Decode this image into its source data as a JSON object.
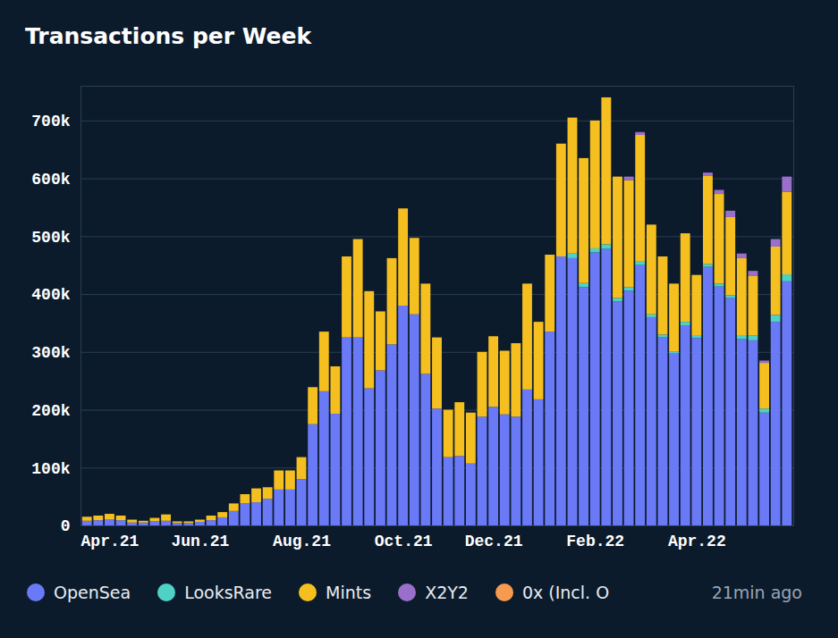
{
  "chart_data": {
    "type": "bar",
    "stacked": true,
    "grid": true,
    "title": "Transactions per Week",
    "annotation": "21min ago",
    "categories": [
      null,
      null,
      "Apr.21",
      null,
      null,
      null,
      null,
      null,
      null,
      null,
      "Jun.21",
      null,
      null,
      null,
      null,
      null,
      null,
      null,
      null,
      "Aug.21",
      null,
      null,
      null,
      null,
      null,
      null,
      null,
      null,
      "Oct.21",
      null,
      null,
      null,
      null,
      null,
      null,
      null,
      "Dec.21",
      null,
      null,
      null,
      null,
      null,
      null,
      null,
      null,
      "Feb.22",
      null,
      null,
      null,
      null,
      null,
      null,
      null,
      null,
      "Apr.22",
      null,
      null,
      null,
      null,
      null,
      null,
      null,
      null
    ],
    "ylim": [
      0,
      760000
    ],
    "yticks": [
      0,
      {
        "value": 100000,
        "label": "100k"
      },
      {
        "value": 200000,
        "label": "200k"
      },
      {
        "value": 300000,
        "label": "300k"
      },
      {
        "value": 400000,
        "label": "400k"
      },
      {
        "value": 500000,
        "label": "500k"
      },
      {
        "value": 600000,
        "label": "600k"
      },
      {
        "value": 700000,
        "label": "700k"
      }
    ],
    "series": [
      {
        "name": "OpenSea",
        "color": "#6a79f6",
        "values": [
          8000,
          9000,
          10000,
          9000,
          5000,
          5000,
          7000,
          8000,
          4000,
          4000,
          6000,
          9000,
          14000,
          25000,
          38000,
          40000,
          46000,
          62000,
          62000,
          80000,
          175000,
          232000,
          193000,
          325000,
          325000,
          237000,
          268000,
          313000,
          380000,
          365000,
          262000,
          202000,
          118000,
          120000,
          107000,
          188000,
          205000,
          192000,
          188000,
          235000,
          218000,
          335000,
          465000,
          462000,
          412000,
          472000,
          478000,
          387000,
          406000,
          450000,
          360000,
          325000,
          297000,
          346000,
          324000,
          447000,
          413000,
          393000,
          322000,
          320000,
          195000,
          352000,
          422000
        ]
      },
      {
        "name": "LooksRare",
        "color": "#4fd1c5",
        "values": [
          0,
          0,
          0,
          0,
          0,
          0,
          0,
          0,
          0,
          0,
          0,
          0,
          0,
          0,
          0,
          0,
          0,
          0,
          0,
          0,
          0,
          0,
          0,
          0,
          0,
          0,
          0,
          0,
          0,
          0,
          0,
          0,
          0,
          0,
          0,
          0,
          0,
          0,
          0,
          0,
          0,
          0,
          0,
          8000,
          7000,
          7000,
          8000,
          6000,
          6000,
          6000,
          5000,
          5000,
          4000,
          6000,
          5000,
          5000,
          5000,
          5000,
          7000,
          8000,
          7000,
          12000,
          12000
        ]
      },
      {
        "name": "Mints",
        "color": "#f5bf1f",
        "values": [
          7000,
          8000,
          10000,
          8000,
          5000,
          3000,
          6000,
          11000,
          3000,
          3000,
          4000,
          8000,
          9000,
          13000,
          16000,
          24000,
          20000,
          33000,
          33000,
          38000,
          64000,
          103000,
          82000,
          140000,
          170000,
          168000,
          102000,
          149000,
          168000,
          132000,
          156000,
          123000,
          82000,
          93000,
          88000,
          112000,
          122000,
          110000,
          127000,
          183000,
          134000,
          133000,
          195000,
          235000,
          216000,
          221000,
          254000,
          210000,
          185000,
          219000,
          155000,
          135000,
          117000,
          153000,
          104000,
          153000,
          155000,
          135000,
          133000,
          103000,
          79000,
          118000,
          143000
        ]
      },
      {
        "name": "X2Y2",
        "color": "#9a6fcb",
        "values": [
          0,
          0,
          0,
          0,
          0,
          0,
          0,
          0,
          0,
          0,
          0,
          0,
          0,
          0,
          0,
          0,
          0,
          0,
          0,
          0,
          0,
          0,
          0,
          0,
          0,
          0,
          0,
          0,
          0,
          0,
          0,
          0,
          0,
          0,
          0,
          0,
          0,
          0,
          0,
          0,
          0,
          0,
          0,
          0,
          0,
          0,
          0,
          0,
          6000,
          5000,
          0,
          0,
          0,
          0,
          0,
          5000,
          7000,
          11000,
          8000,
          9000,
          4000,
          13000,
          26000
        ]
      },
      {
        "name": "0x (Incl. O",
        "color": "#f59a4f",
        "values": [
          0,
          0,
          0,
          0,
          0,
          0,
          0,
          0,
          0,
          0,
          0,
          0,
          0,
          0,
          0,
          0,
          0,
          0,
          0,
          0,
          0,
          0,
          0,
          0,
          0,
          0,
          0,
          0,
          0,
          0,
          0,
          0,
          0,
          0,
          0,
          0,
          0,
          0,
          0,
          0,
          0,
          0,
          0,
          0,
          0,
          0,
          0,
          0,
          0,
          0,
          0,
          0,
          0,
          0,
          0,
          0,
          0,
          0,
          0,
          0,
          0,
          0,
          0
        ]
      }
    ]
  }
}
